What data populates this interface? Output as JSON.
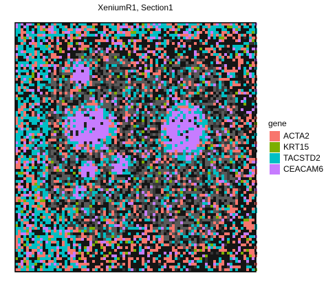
{
  "chart_data": {
    "type": "spatial",
    "title": "XeniumR1, Section1",
    "legend_title": "gene",
    "series": [
      {
        "name": "ACTA2",
        "color": "#f8766d"
      },
      {
        "name": "KRT15",
        "color": "#7cae00"
      },
      {
        "name": "TACSTD2",
        "color": "#00bfc4"
      },
      {
        "name": "CEACAM6",
        "color": "#c77cff"
      }
    ]
  }
}
